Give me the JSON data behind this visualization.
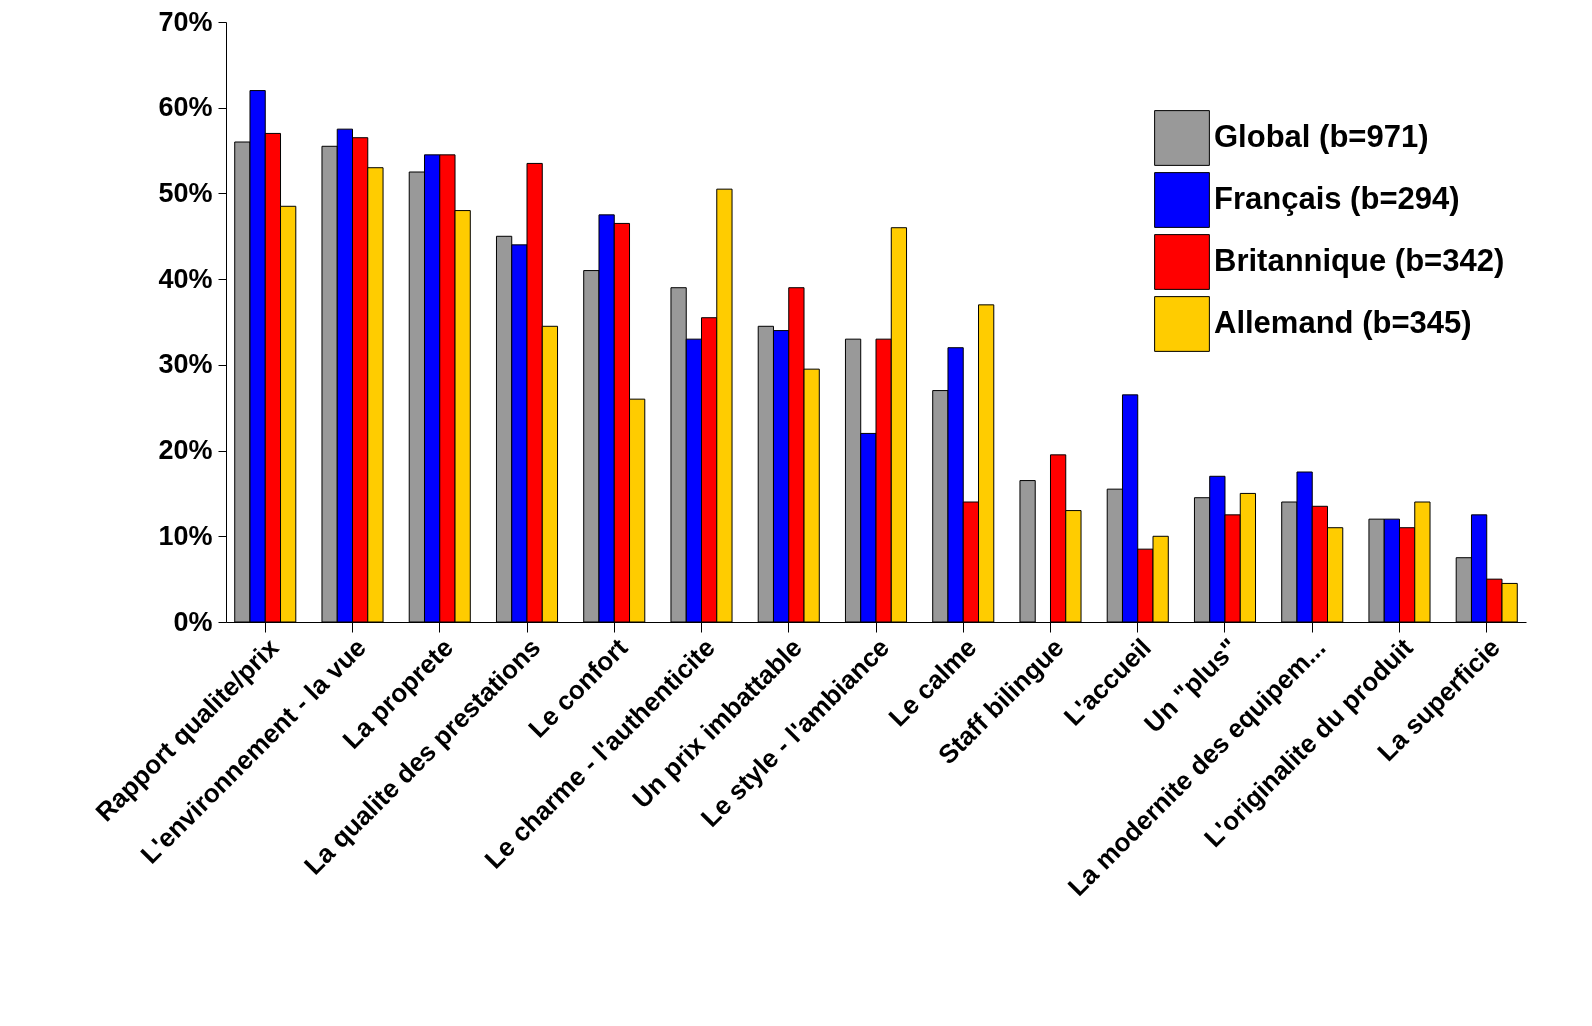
{
  "chart_data": {
    "type": "bar",
    "categories": [
      "Rapport qualite/prix",
      "L'environnement - la vue",
      "La proprete",
      "La qualite des prestations",
      "Le confort",
      "Le charme - l'authenticite",
      "Un prix imbattable",
      "Le style - l'ambiance",
      "Le calme",
      "Staff bilingue",
      "L'accueil",
      "Un \"plus\"",
      "La modernite des equipem...",
      "L'originalite du produit",
      "La superficie"
    ],
    "series": [
      {
        "name": "Global (b=971)",
        "color": "#999999",
        "values": [
          56,
          55.5,
          52.5,
          45,
          41,
          39,
          34.5,
          33,
          27,
          16.5,
          15.5,
          14.5,
          14,
          12,
          7.5
        ]
      },
      {
        "name": "Français (b=294)",
        "color": "#0000ff",
        "values": [
          62,
          57.5,
          54.5,
          44,
          47.5,
          33,
          34,
          22,
          32,
          null,
          26.5,
          17,
          17.5,
          12,
          12.5
        ]
      },
      {
        "name": "Britannique (b=342)",
        "color": "#ff0000",
        "values": [
          57,
          56.5,
          54.5,
          53.5,
          46.5,
          35.5,
          39,
          33,
          14,
          19.5,
          8.5,
          12.5,
          13.5,
          11,
          5
        ]
      },
      {
        "name": "Allemand (b=345)",
        "color": "#ffcc00",
        "values": [
          48.5,
          53,
          48,
          34.5,
          26,
          50.5,
          29.5,
          46,
          37,
          13,
          10,
          15,
          11,
          14,
          4.5
        ]
      }
    ],
    "ylim": [
      0,
      70
    ],
    "yticks": [
      {
        "value": 0,
        "label": "0%"
      },
      {
        "value": 10,
        "label": "10%"
      },
      {
        "value": 20,
        "label": "20%"
      },
      {
        "value": 30,
        "label": "30%"
      },
      {
        "value": 40,
        "label": "40%"
      },
      {
        "value": 50,
        "label": "50%"
      },
      {
        "value": 60,
        "label": "60%"
      },
      {
        "value": 70,
        "label": "70%"
      }
    ],
    "legend": "top right"
  }
}
